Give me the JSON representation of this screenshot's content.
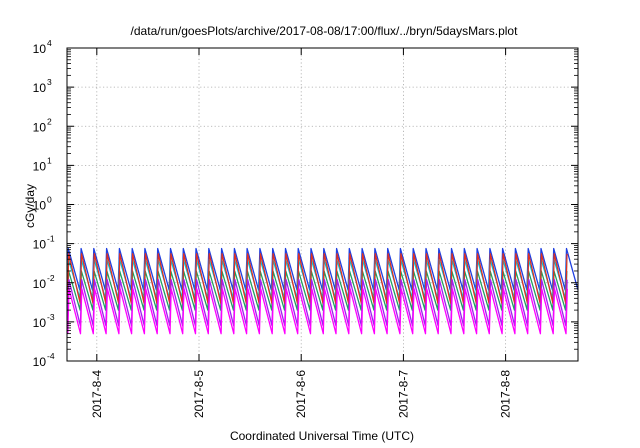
{
  "chart_data": {
    "type": "line",
    "title": "/data/run/goesPlots/archive/2017-08-08/17:00/flux/../bryn/5daysMars.plot",
    "xlabel": "Coordinated Universal Time (UTC)",
    "ylabel": "cGy/day",
    "y_scale": "log",
    "ylim": [
      0.0001,
      10000
    ],
    "y_ticks": [
      {
        "base": "10",
        "exp": "-4"
      },
      {
        "base": "10",
        "exp": "-3"
      },
      {
        "base": "10",
        "exp": "-2"
      },
      {
        "base": "10",
        "exp": "-1"
      },
      {
        "base": "10",
        "exp": "0"
      },
      {
        "base": "10",
        "exp": "1"
      },
      {
        "base": "10",
        "exp": "2"
      },
      {
        "base": "10",
        "exp": "3"
      },
      {
        "base": "10",
        "exp": "4"
      }
    ],
    "xlim": [
      "2017-08-03 17:00",
      "2017-08-08 17:00"
    ],
    "x_tick_labels": [
      "2017-8-4",
      "2017-8-5",
      "2017-8-6",
      "2017-8-7",
      "2017-8-8"
    ],
    "grid": true,
    "legend": "none",
    "period_hours": 3,
    "series": [
      {
        "color": "#1f3fe0",
        "peak": 0.075,
        "trough": 0.0065
      },
      {
        "color": "#00c8d8",
        "peak": 0.04,
        "trough": 0.004
      },
      {
        "color": "#20a060",
        "peak": 0.02,
        "trough": 0.002
      },
      {
        "color": "#e03020",
        "peak": 0.055,
        "trough": 0.003
      },
      {
        "color": "#a020f0",
        "peak": 0.012,
        "trough": 0.0008
      },
      {
        "color": "#ff00ff",
        "peak": 0.007,
        "trough": 0.0005
      }
    ]
  }
}
